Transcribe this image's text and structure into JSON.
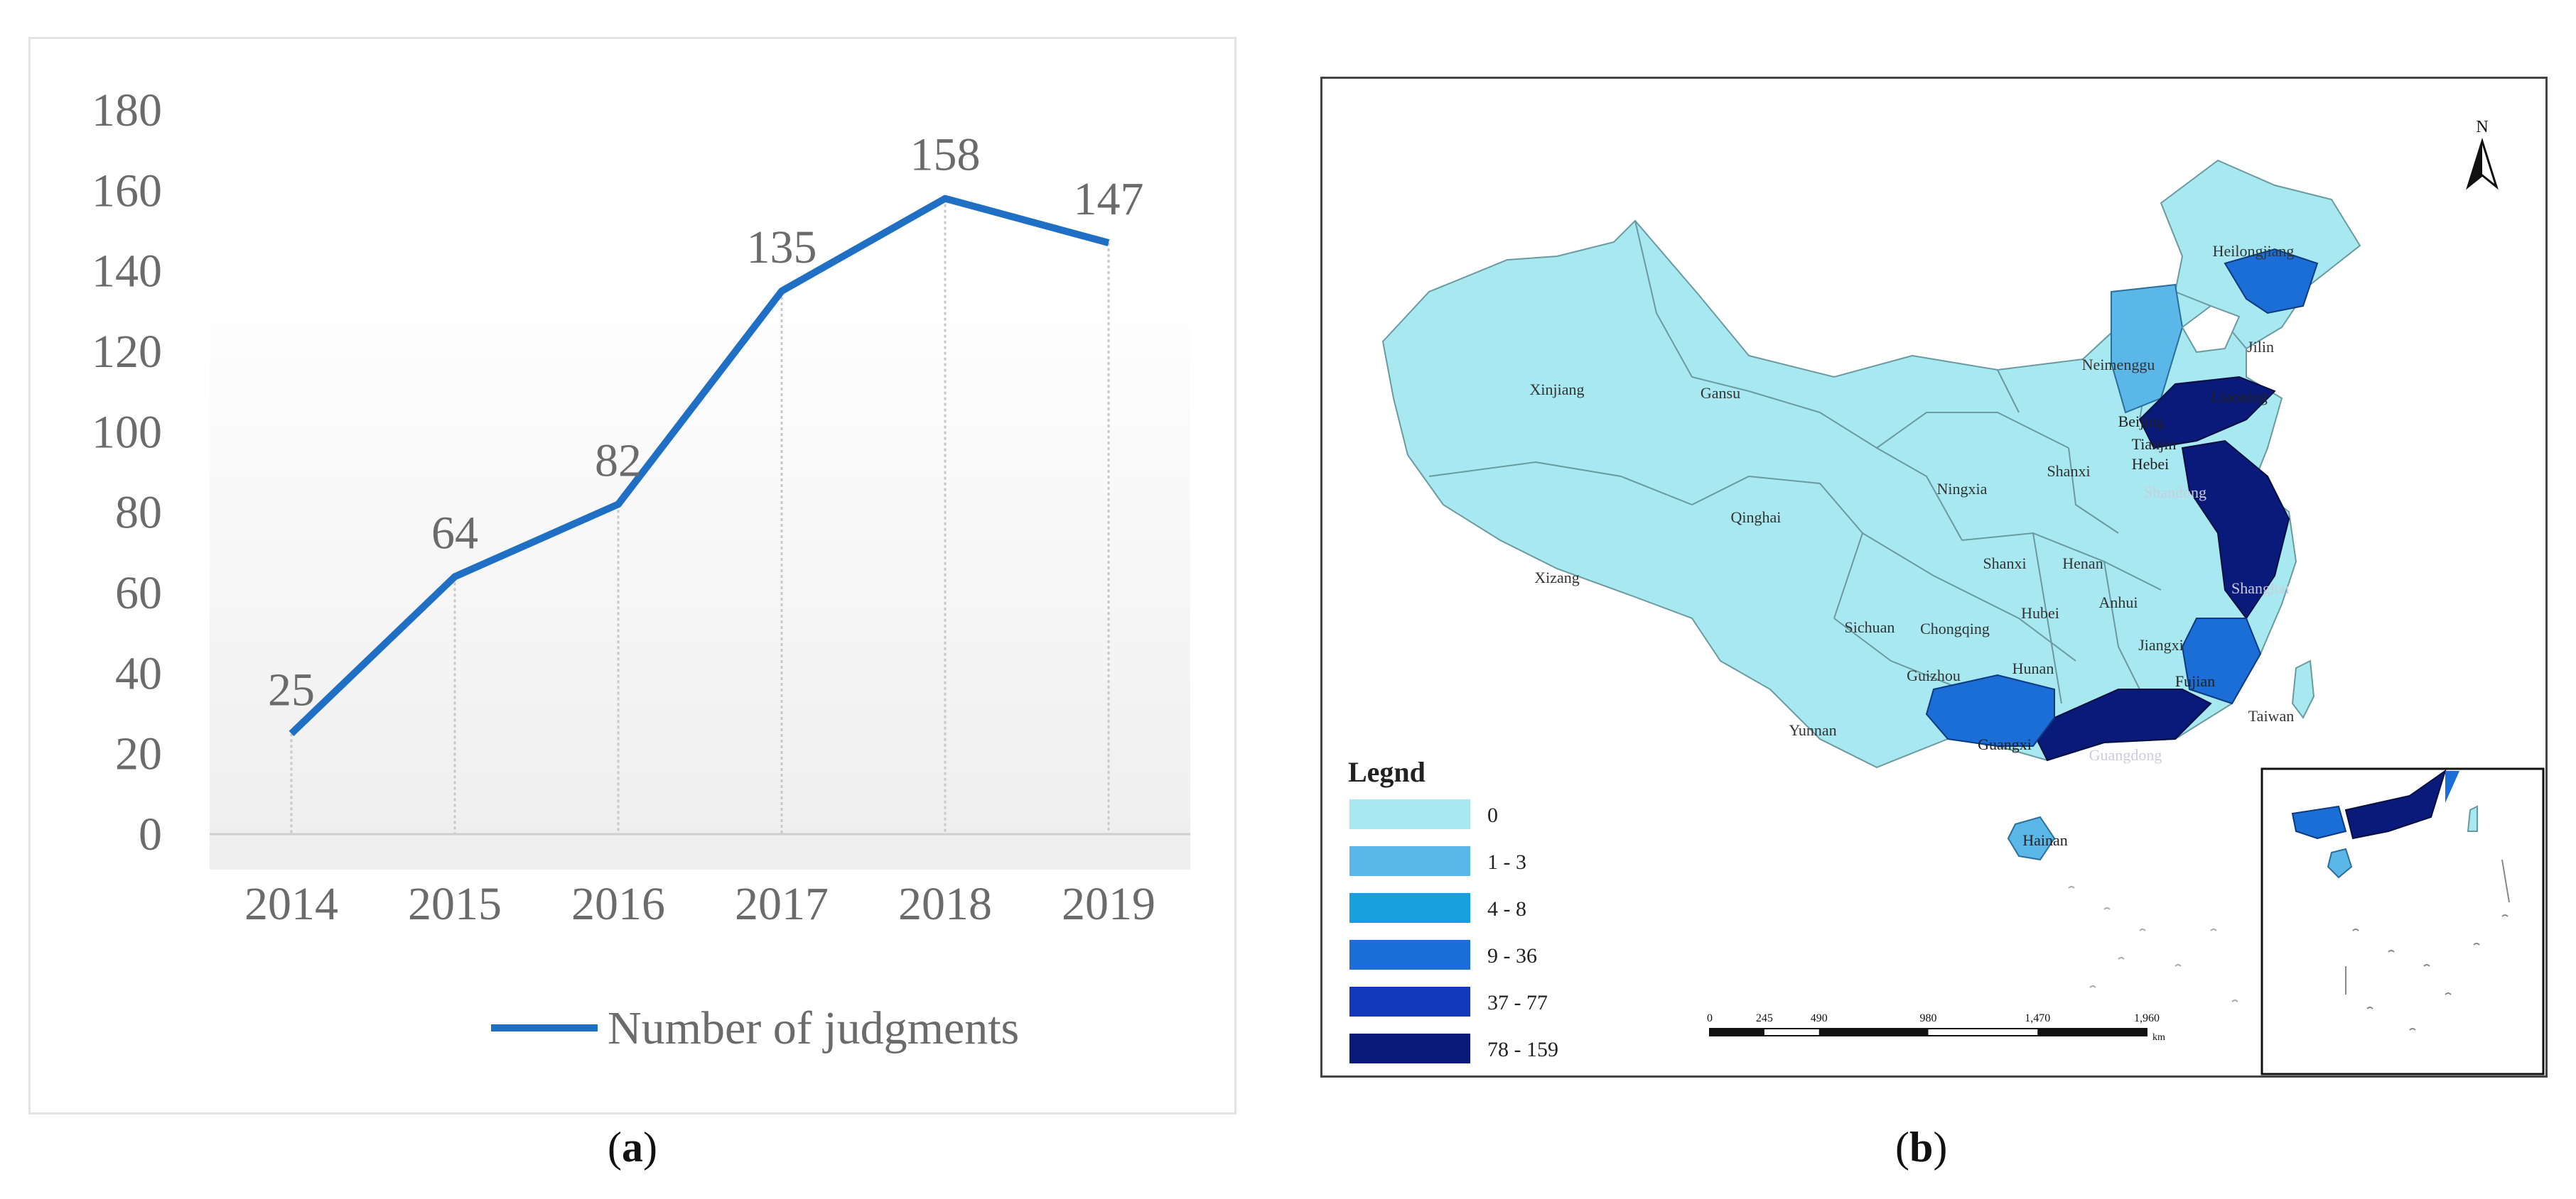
{
  "chart_data": {
    "type": "line",
    "categories": [
      "2014",
      "2015",
      "2016",
      "2017",
      "2018",
      "2019"
    ],
    "series": [
      {
        "name": "Number of judgments",
        "values": [
          25,
          64,
          82,
          135,
          158,
          147
        ],
        "color": "#1f6fc5"
      }
    ],
    "ylim": [
      0,
      180
    ],
    "yticks": [
      0,
      20,
      40,
      60,
      80,
      100,
      120,
      140,
      160,
      180
    ],
    "xlabel": "",
    "ylabel": "",
    "title": "",
    "grid": false,
    "data_labels": true,
    "legend_position": "bottom-right"
  },
  "map": {
    "north_label": "N",
    "legend_title": "Legnd",
    "legend_items": [
      {
        "label": "0",
        "color": "#a8e8f0"
      },
      {
        "label": "1 - 3",
        "color": "#5ab7e8"
      },
      {
        "label": "4 - 8",
        "color": "#17a0e0"
      },
      {
        "label": "9 - 36",
        "color": "#1a6ed6"
      },
      {
        "label": "37 - 77",
        "color": "#1237b8"
      },
      {
        "label": "78 - 159",
        "color": "#0a1a7a"
      }
    ],
    "scale_ticks": [
      "0",
      "245",
      "490",
      "980",
      "1,470",
      "1,960"
    ],
    "scale_unit": "km",
    "province_labels": [
      "Heilongjiang",
      "Jilin",
      "Neimenggu",
      "Liaoning",
      "Xinjiang",
      "Gansu",
      "Beijing",
      "Tianjin",
      "Hebei",
      "Shandong",
      "Ningxia",
      "Shanxi",
      "Qinghai",
      "Shanxi",
      "Henan",
      "Xizang",
      "Shanghai",
      "Sichuan",
      "Chongqing",
      "Hubei",
      "Anhui",
      "Jiangxi",
      "Hunan",
      "Guizhou",
      "Fujian",
      "Taiwan",
      "Yunnan",
      "Guangxi",
      "Guangdong",
      "Hainan"
    ]
  },
  "captions": {
    "a_letter": "a",
    "b_letter": "b"
  }
}
